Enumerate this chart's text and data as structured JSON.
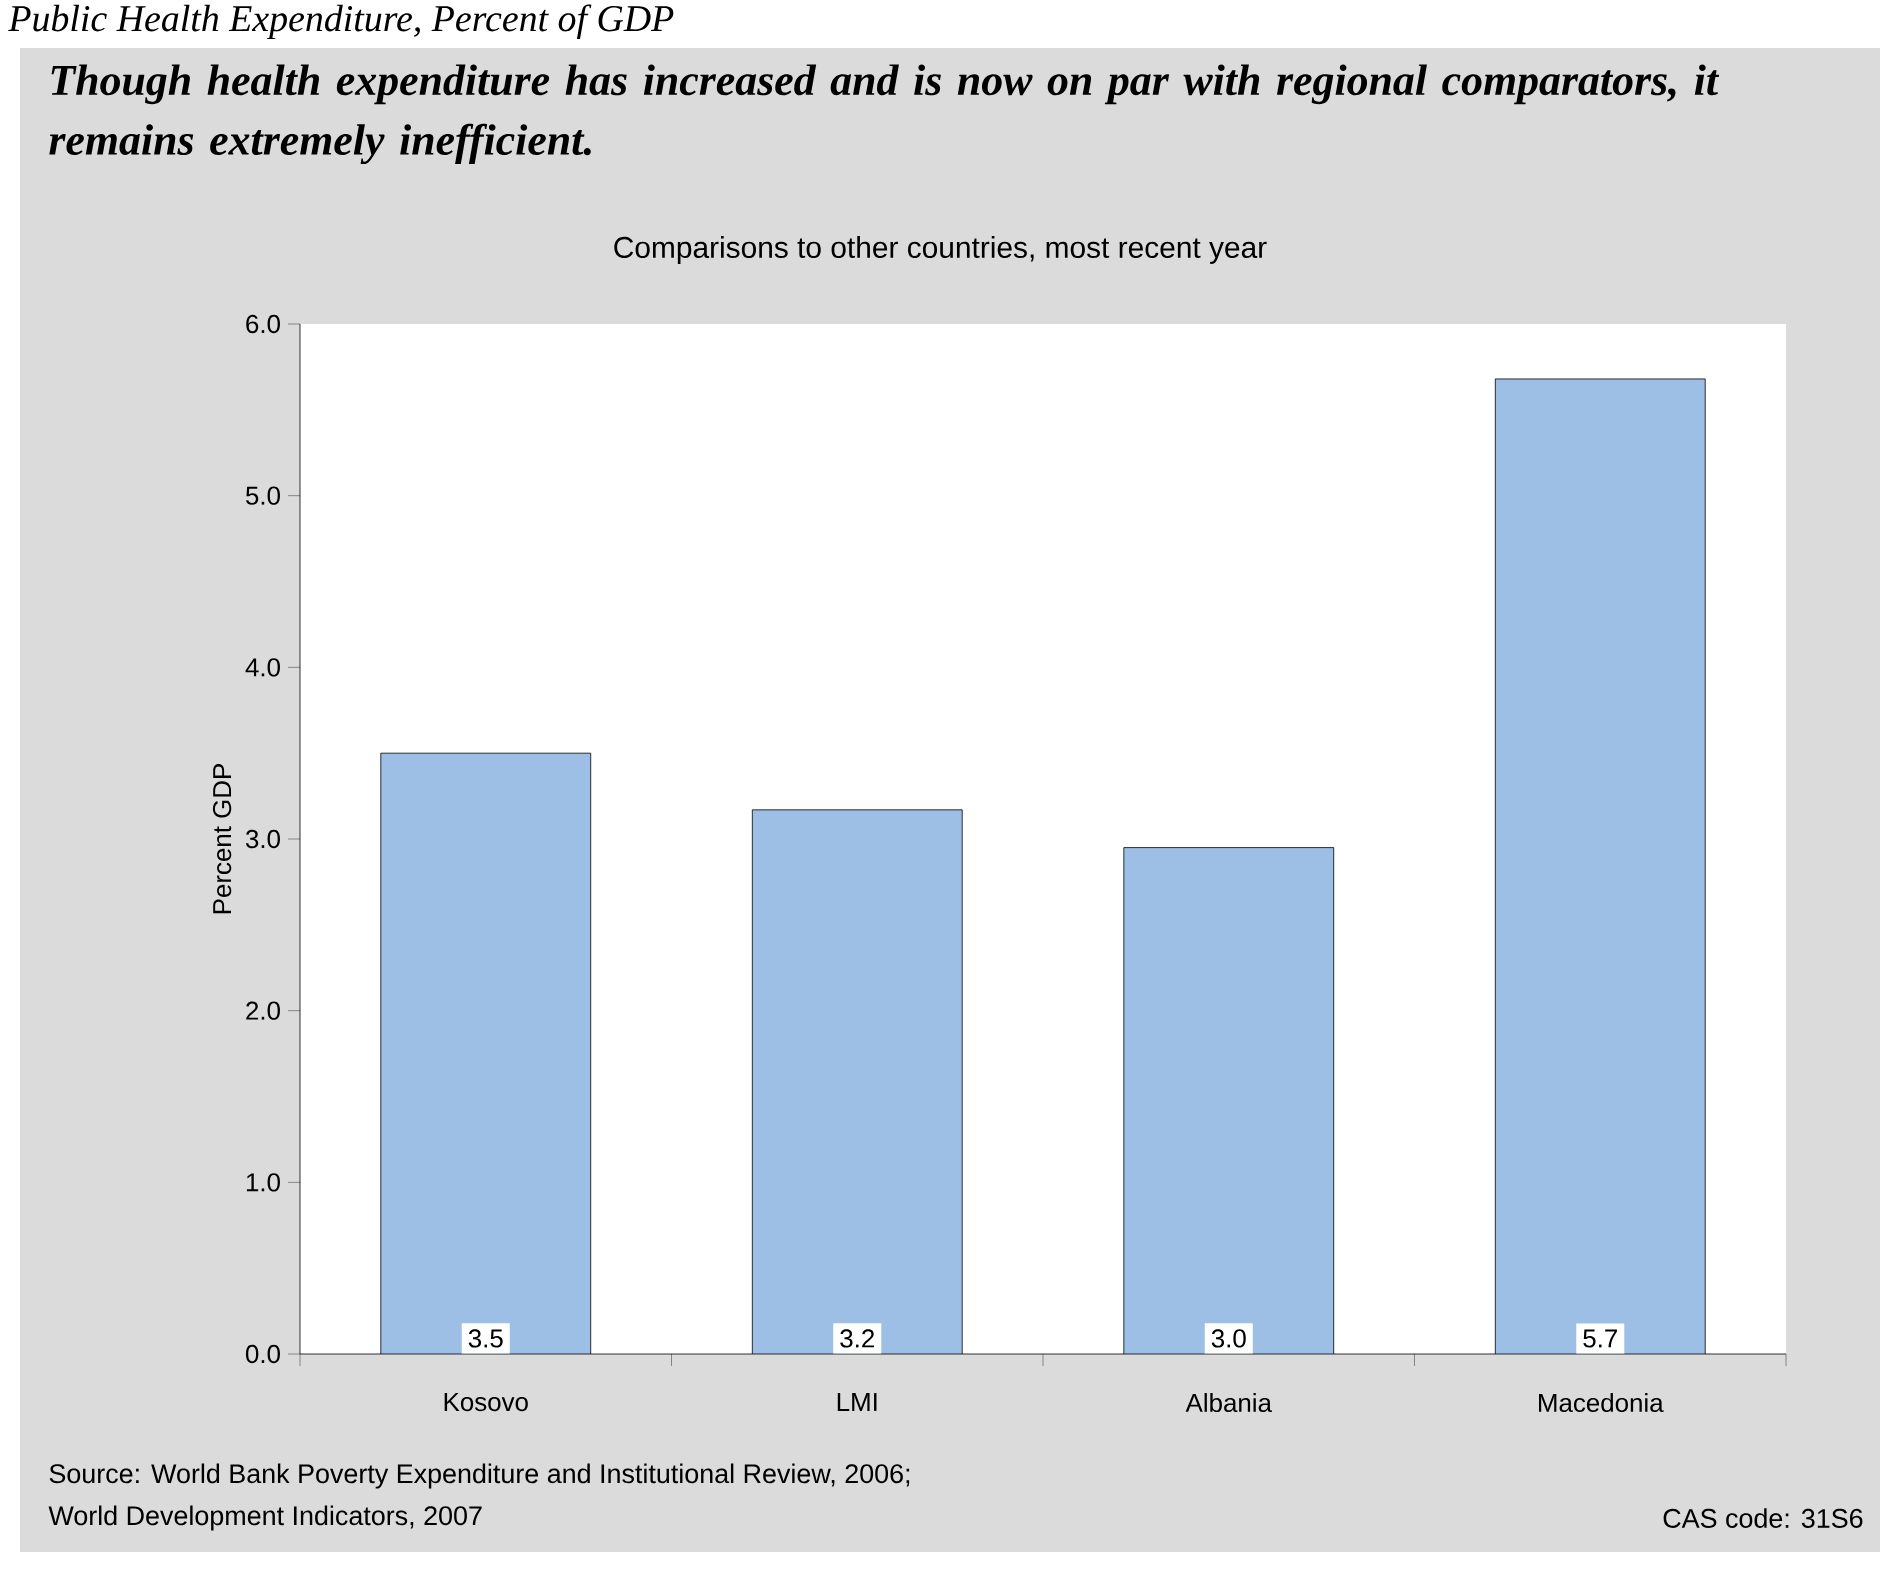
{
  "chart_data": {
    "type": "bar",
    "title": "Public Health Expenditure, Percent of GDP",
    "subtitle": "Though health expenditure has increased and is now on par with regional comparators, it remains extremely inefficient.",
    "annotations": [
      "Comparisons to other countries, most recent year",
      "Source: World Bank Poverty Expenditure and Institutional Review, 2006;",
      "World Development Indicators, 2007",
      "CAS code: 31S6"
    ],
    "ylabel": "Percent GDP",
    "categories": [
      "Kosovo",
      "LMI",
      "Albania",
      "Macedonia"
    ],
    "values": [
      3.5,
      3.17,
      2.95,
      5.68
    ],
    "value_labels": [
      "3.5",
      "3.2",
      "3.0",
      "5.7"
    ],
    "color": "#9dbfe6",
    "ylim": [
      0,
      6
    ],
    "yticks": [
      {
        "value": 0,
        "label": "0.0"
      },
      {
        "value": 1,
        "label": "1.0"
      },
      {
        "value": 2,
        "label": "2.0"
      },
      {
        "value": 3,
        "label": "3.0"
      },
      {
        "value": 4,
        "label": "4.0"
      },
      {
        "value": 5,
        "label": "5.0"
      },
      {
        "value": 6,
        "label": "6.0"
      }
    ]
  }
}
